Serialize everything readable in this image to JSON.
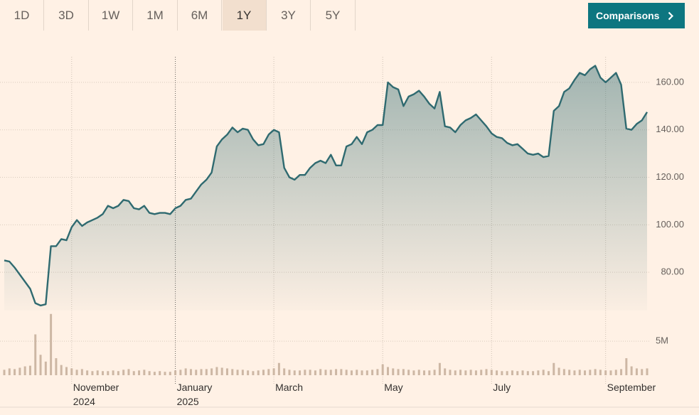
{
  "toolbar": {
    "ranges": [
      "1D",
      "3D",
      "1W",
      "1M",
      "6M",
      "1Y",
      "3Y",
      "5Y"
    ],
    "active_index": 5,
    "button": "Comparisons"
  },
  "chart_data": {
    "type": "line",
    "categories": [
      null,
      null,
      null,
      null,
      null,
      null,
      null,
      null,
      null,
      null,
      null,
      null,
      null,
      "November\n2024",
      null,
      null,
      null,
      null,
      null,
      null,
      null,
      null,
      null,
      null,
      null,
      null,
      null,
      null,
      null,
      null,
      null,
      null,
      null,
      "January\n2025",
      null,
      null,
      null,
      null,
      null,
      null,
      null,
      null,
      null,
      null,
      null,
      null,
      null,
      null,
      null,
      null,
      null,
      null,
      "March",
      null,
      null,
      null,
      null,
      null,
      null,
      null,
      null,
      null,
      null,
      null,
      null,
      null,
      null,
      null,
      null,
      null,
      null,
      null,
      null,
      "May",
      null,
      null,
      null,
      null,
      null,
      null,
      null,
      null,
      null,
      null,
      null,
      null,
      null,
      null,
      null,
      null,
      null,
      null,
      null,
      null,
      "July",
      null,
      null,
      null,
      null,
      null,
      null,
      null,
      null,
      null,
      null,
      null,
      null,
      null,
      null,
      null,
      null,
      null,
      null,
      null,
      null,
      null,
      "September",
      null,
      null,
      null,
      null,
      null,
      null,
      null,
      null
    ],
    "series": [
      {
        "type": "line",
        "color": "#2f6a70",
        "values": [
          85,
          84.5,
          82,
          79,
          76,
          73,
          67,
          66,
          66.5,
          91,
          91,
          94,
          93.5,
          99,
          102,
          99.5,
          101,
          102,
          103,
          104.5,
          108,
          107,
          108,
          110.5,
          110,
          107,
          106.5,
          108,
          105,
          104.5,
          105,
          105,
          104.5,
          107,
          108,
          110.5,
          111,
          114,
          117,
          119,
          122,
          133,
          136,
          138,
          141,
          139,
          140.5,
          140,
          136,
          133.5,
          134,
          138,
          140,
          139,
          124,
          120,
          119,
          121,
          121,
          124,
          126,
          127,
          126,
          129.5,
          125,
          125,
          133,
          134,
          137,
          134,
          139,
          140,
          142,
          142,
          160,
          158,
          157,
          150,
          154,
          155,
          156.5,
          154,
          151,
          149,
          156,
          141.5,
          141,
          139,
          142,
          144,
          145,
          146.5,
          144,
          141.5,
          138.5,
          137,
          136.5,
          134.5,
          133.5,
          134,
          132,
          130,
          129.5,
          130,
          128.5,
          129,
          148,
          150,
          156,
          157.5,
          161,
          164,
          163,
          165.5,
          167,
          162,
          160,
          162,
          164,
          159,
          140.5,
          140,
          142.5,
          144,
          147.5
        ]
      },
      {
        "type": "bar",
        "axis": "y2",
        "color": "#cdb7a4",
        "values": [
          0.8,
          1.0,
          0.9,
          1.1,
          1.3,
          1.4,
          6.0,
          3.0,
          2.0,
          9.0,
          2.5,
          1.5,
          1.2,
          1.0,
          0.8,
          0.9,
          0.7,
          0.6,
          0.7,
          0.6,
          0.6,
          0.7,
          0.6,
          0.8,
          0.9,
          0.6,
          0.7,
          0.8,
          0.6,
          0.5,
          0.6,
          0.5,
          0.5,
          0.7,
          0.8,
          1.0,
          0.9,
          0.8,
          0.9,
          0.9,
          1.0,
          1.2,
          1.1,
          1.0,
          0.9,
          0.8,
          0.8,
          0.7,
          0.6,
          0.7,
          0.8,
          0.9,
          1.0,
          1.8,
          1.0,
          0.8,
          0.7,
          0.7,
          0.8,
          0.8,
          0.7,
          0.9,
          0.8,
          0.8,
          0.9,
          0.9,
          0.8,
          0.7,
          0.8,
          0.7,
          0.7,
          0.8,
          0.9,
          1.6,
          1.2,
          1.0,
          0.9,
          0.9,
          0.8,
          0.7,
          0.8,
          0.7,
          0.7,
          0.8,
          1.8,
          1.0,
          0.8,
          0.7,
          0.8,
          0.7,
          0.8,
          0.7,
          0.8,
          0.9,
          0.8,
          0.7,
          0.6,
          0.6,
          0.7,
          0.6,
          0.7,
          0.6,
          0.6,
          0.7,
          0.8,
          0.6,
          1.8,
          1.1,
          0.9,
          0.8,
          0.7,
          0.8,
          0.7,
          0.8,
          0.9,
          0.8,
          0.7,
          0.7,
          0.8,
          0.9,
          2.5,
          1.3,
          1.0,
          0.9,
          1.0
        ]
      }
    ],
    "ylim": [
      64,
      170
    ],
    "yticks": [
      {
        "value": 80,
        "label": "80.00"
      },
      {
        "value": 100,
        "label": "100.00"
      },
      {
        "value": 120,
        "label": "120.00"
      },
      {
        "value": 140,
        "label": "140.00"
      },
      {
        "value": 160,
        "label": "160.00"
      }
    ],
    "y2lim": [
      0,
      9.5
    ],
    "y2ticks": [
      {
        "value": 5,
        "label": "5M"
      }
    ],
    "grid": true
  }
}
